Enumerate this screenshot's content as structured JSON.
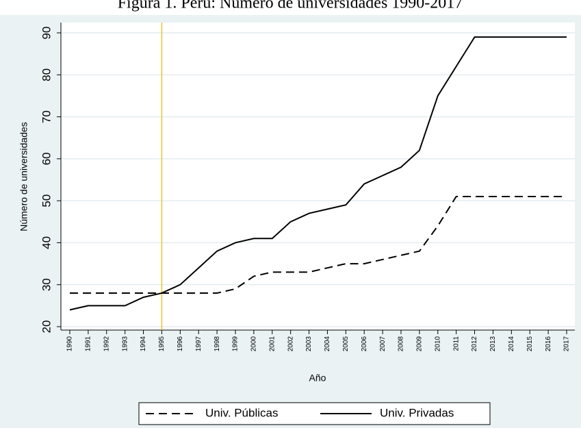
{
  "chart_data": {
    "type": "line",
    "title": "Figura 1. Perú: Número de universidades 1990-2017",
    "x_label": "Año",
    "y_label": "Número de universidades",
    "x": [
      1990,
      1991,
      1992,
      1993,
      1994,
      1995,
      1996,
      1997,
      1998,
      1999,
      2000,
      2001,
      2002,
      2003,
      2004,
      2005,
      2006,
      2007,
      2008,
      2009,
      2010,
      2011,
      2012,
      2013,
      2014,
      2015,
      2016,
      2017
    ],
    "series": [
      {
        "name": "Univ. Públicas",
        "color": "#000000",
        "line_style": "dashed",
        "values": [
          28,
          28,
          28,
          28,
          28,
          28,
          28,
          28,
          28,
          29,
          32,
          33,
          33,
          33,
          34,
          35,
          35,
          36,
          37,
          38,
          44,
          51,
          51,
          51,
          51,
          51,
          51,
          51
        ]
      },
      {
        "name": "Univ. Privadas",
        "color": "#000000",
        "line_style": "solid",
        "values": [
          24,
          25,
          25,
          25,
          27,
          28,
          30,
          34,
          38,
          40,
          41,
          41,
          45,
          47,
          48,
          49,
          54,
          56,
          58,
          62,
          75,
          82,
          89,
          89,
          89,
          89,
          89,
          89
        ]
      }
    ],
    "xlim": [
      1990,
      2017
    ],
    "xticks": [
      1990,
      1991,
      1992,
      1993,
      1994,
      1995,
      1996,
      1997,
      1998,
      1999,
      2000,
      2001,
      2002,
      2003,
      2004,
      2005,
      2006,
      2007,
      2008,
      2009,
      2010,
      2011,
      2012,
      2013,
      2014,
      2015,
      2016,
      2017
    ],
    "ylim": [
      20,
      90
    ],
    "yticks": [
      20,
      30,
      40,
      50,
      60,
      70,
      80,
      90
    ],
    "grid": true,
    "reference_line": {
      "x": 1995,
      "color": "#f0b400"
    },
    "legend": "bottom"
  }
}
